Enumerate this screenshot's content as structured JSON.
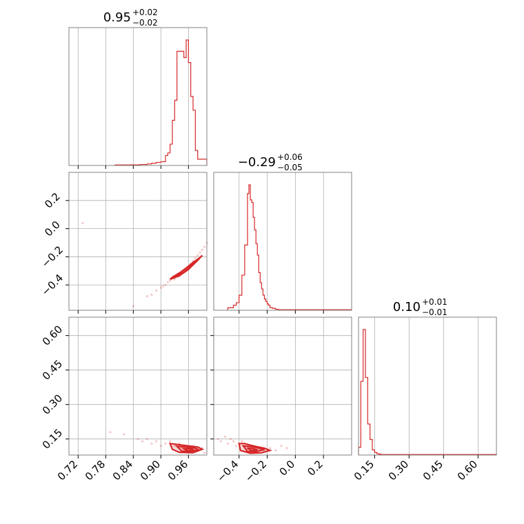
{
  "chart_data": {
    "type": "corner",
    "color": "#d62728",
    "grid": true,
    "parameters": [
      {
        "median": "0.95",
        "plus": "+0.02",
        "minus": "−0.02",
        "range": [
          0.7,
          1.0
        ],
        "ticks": [
          {
            "v": 0.72,
            "label": "0.72"
          },
          {
            "v": 0.78,
            "label": "0.78"
          },
          {
            "v": 0.84,
            "label": "0.84"
          },
          {
            "v": 0.9,
            "label": "0.90"
          },
          {
            "v": 0.96,
            "label": "0.96"
          }
        ],
        "histogram": {
          "edges": [
            0.8,
            0.835,
            0.855,
            0.87,
            0.88,
            0.89,
            0.9,
            0.91,
            0.915,
            0.92,
            0.925,
            0.93,
            0.935,
            0.94,
            0.945,
            0.95,
            0.955,
            0.96,
            0.965,
            0.97,
            0.975,
            0.98,
            1.0
          ],
          "counts": [
            0.004,
            0.005,
            0.008,
            0.012,
            0.018,
            0.025,
            0.03,
            0.08,
            0.1,
            0.17,
            0.36,
            0.52,
            0.91,
            0.91,
            0.91,
            0.86,
            1.0,
            0.82,
            0.55,
            0.44,
            0.12,
            0.05
          ]
        }
      },
      {
        "median": "−0.29",
        "plus": "+0.06",
        "minus": "−0.05",
        "range": [
          -0.58,
          0.4
        ],
        "ticks": [
          {
            "v": -0.4,
            "label": "−0.4"
          },
          {
            "v": -0.2,
            "label": "−0.2"
          },
          {
            "v": 0.0,
            "label": "0.0"
          },
          {
            "v": 0.2,
            "label": "0.2"
          }
        ],
        "histogram": {
          "edges": [
            -0.48,
            -0.44,
            -0.42,
            -0.4,
            -0.38,
            -0.36,
            -0.34,
            -0.33,
            -0.32,
            -0.31,
            -0.3,
            -0.29,
            -0.28,
            -0.27,
            -0.26,
            -0.25,
            -0.24,
            -0.23,
            -0.22,
            -0.21,
            -0.2,
            -0.19,
            -0.18,
            -0.16,
            -0.14,
            -0.12,
            0.4
          ],
          "counts": [
            0.02,
            0.04,
            0.06,
            0.12,
            0.28,
            0.52,
            0.93,
            1.0,
            0.88,
            0.86,
            0.74,
            0.64,
            0.53,
            0.44,
            0.3,
            0.22,
            0.17,
            0.12,
            0.09,
            0.07,
            0.05,
            0.04,
            0.02,
            0.015,
            0.008,
            0.004
          ]
        }
      },
      {
        "median": "0.10",
        "plus": "+0.01",
        "minus": "−0.01",
        "range": [
          0.08,
          0.68
        ],
        "ticks": [
          {
            "v": 0.15,
            "label": "0.15"
          },
          {
            "v": 0.3,
            "label": "0.30"
          },
          {
            "v": 0.45,
            "label": "0.45"
          },
          {
            "v": 0.6,
            "label": "0.60"
          }
        ],
        "histogram": {
          "edges": [
            0.08,
            0.09,
            0.1,
            0.11,
            0.12,
            0.13,
            0.14,
            0.15,
            0.16,
            0.17,
            0.18,
            0.68
          ],
          "counts": [
            0.06,
            0.57,
            0.97,
            0.6,
            0.24,
            0.12,
            0.04,
            0.02,
            0.01,
            0.006,
            0.004
          ]
        }
      }
    ],
    "scatter_panels": [
      {
        "x_param": 0,
        "y_param": 1,
        "points": [
          [
            0.73,
            0.04
          ],
          [
            0.84,
            -0.55
          ],
          [
            0.87,
            -0.48
          ],
          [
            0.88,
            -0.47
          ],
          [
            0.89,
            -0.44
          ],
          [
            0.9,
            -0.42
          ],
          [
            0.905,
            -0.41
          ],
          [
            0.91,
            -0.4
          ],
          [
            0.915,
            -0.38
          ],
          [
            0.92,
            -0.37
          ],
          [
            0.93,
            -0.36
          ],
          [
            0.94,
            -0.34
          ],
          [
            0.945,
            -0.32
          ],
          [
            0.95,
            -0.3
          ],
          [
            0.955,
            -0.29
          ],
          [
            0.96,
            -0.27
          ],
          [
            0.965,
            -0.25
          ],
          [
            0.97,
            -0.23
          ],
          [
            0.975,
            -0.21
          ],
          [
            0.98,
            -0.19
          ],
          [
            0.985,
            -0.17
          ],
          [
            0.99,
            -0.15
          ],
          [
            0.995,
            -0.13
          ],
          [
            1.0,
            -0.1
          ]
        ],
        "contours": [
          [
            [
              0.92,
              -0.36
            ],
            [
              0.94,
              -0.335
            ],
            [
              0.96,
              -0.29
            ],
            [
              0.98,
              -0.225
            ],
            [
              0.99,
              -0.19
            ],
            [
              0.985,
              -0.205
            ],
            [
              0.965,
              -0.255
            ],
            [
              0.945,
              -0.305
            ],
            [
              0.925,
              -0.345
            ],
            [
              0.92,
              -0.36
            ]
          ],
          [
            [
              0.93,
              -0.345
            ],
            [
              0.95,
              -0.31
            ],
            [
              0.97,
              -0.255
            ],
            [
              0.983,
              -0.215
            ],
            [
              0.972,
              -0.235
            ],
            [
              0.955,
              -0.28
            ],
            [
              0.935,
              -0.33
            ],
            [
              0.93,
              -0.345
            ]
          ]
        ]
      },
      {
        "x_param": 0,
        "y_param": 2,
        "points": [
          [
            0.79,
            0.18
          ],
          [
            0.82,
            0.17
          ],
          [
            0.85,
            0.15
          ],
          [
            0.86,
            0.14
          ],
          [
            0.87,
            0.15
          ],
          [
            0.88,
            0.13
          ],
          [
            0.89,
            0.14
          ],
          [
            0.9,
            0.12
          ],
          [
            0.91,
            0.13
          ],
          [
            0.92,
            0.14
          ],
          [
            0.93,
            0.12
          ],
          [
            0.94,
            0.13
          ],
          [
            0.95,
            0.12
          ],
          [
            0.96,
            0.11
          ],
          [
            0.97,
            0.12
          ],
          [
            0.98,
            0.1
          ],
          [
            0.99,
            0.11
          ],
          [
            0.995,
            0.09
          ]
        ],
        "contours": [
          [
            [
              0.92,
              0.13
            ],
            [
              0.94,
              0.125
            ],
            [
              0.96,
              0.12
            ],
            [
              0.98,
              0.115
            ],
            [
              0.99,
              0.105
            ],
            [
              0.97,
              0.09
            ],
            [
              0.94,
              0.092
            ],
            [
              0.925,
              0.105
            ],
            [
              0.92,
              0.13
            ]
          ],
          [
            [
              0.935,
              0.118
            ],
            [
              0.955,
              0.115
            ],
            [
              0.975,
              0.11
            ],
            [
              0.982,
              0.103
            ],
            [
              0.965,
              0.095
            ],
            [
              0.945,
              0.097
            ],
            [
              0.935,
              0.118
            ]
          ],
          [
            [
              0.95,
              0.108
            ],
            [
              0.965,
              0.107
            ],
            [
              0.972,
              0.102
            ],
            [
              0.958,
              0.098
            ],
            [
              0.95,
              0.108
            ]
          ]
        ]
      },
      {
        "x_param": 1,
        "y_param": 2,
        "points": [
          [
            -0.55,
            0.15
          ],
          [
            -0.53,
            0.14
          ],
          [
            -0.5,
            0.16
          ],
          [
            -0.48,
            0.13
          ],
          [
            -0.46,
            0.15
          ],
          [
            -0.44,
            0.14
          ],
          [
            -0.42,
            0.12
          ],
          [
            -0.4,
            0.13
          ],
          [
            -0.38,
            0.14
          ],
          [
            -0.36,
            0.12
          ],
          [
            -0.34,
            0.11
          ],
          [
            -0.3,
            0.12
          ],
          [
            -0.26,
            0.11
          ],
          [
            -0.22,
            0.1
          ],
          [
            -0.18,
            0.11
          ],
          [
            -0.14,
            0.1
          ],
          [
            -0.1,
            0.12
          ],
          [
            -0.06,
            0.11
          ]
        ],
        "contours": [
          [
            [
              -0.4,
              0.13
            ],
            [
              -0.36,
              0.13
            ],
            [
              -0.3,
              0.12
            ],
            [
              -0.22,
              0.11
            ],
            [
              -0.18,
              0.1
            ],
            [
              -0.24,
              0.09
            ],
            [
              -0.32,
              0.088
            ],
            [
              -0.39,
              0.1
            ],
            [
              -0.4,
              0.13
            ]
          ],
          [
            [
              -0.37,
              0.12
            ],
            [
              -0.33,
              0.118
            ],
            [
              -0.27,
              0.112
            ],
            [
              -0.22,
              0.104
            ],
            [
              -0.28,
              0.095
            ],
            [
              -0.34,
              0.095
            ],
            [
              -0.37,
              0.12
            ]
          ],
          [
            [
              -0.34,
              0.11
            ],
            [
              -0.3,
              0.108
            ],
            [
              -0.27,
              0.103
            ],
            [
              -0.31,
              0.098
            ],
            [
              -0.34,
              0.11
            ]
          ]
        ]
      }
    ]
  }
}
